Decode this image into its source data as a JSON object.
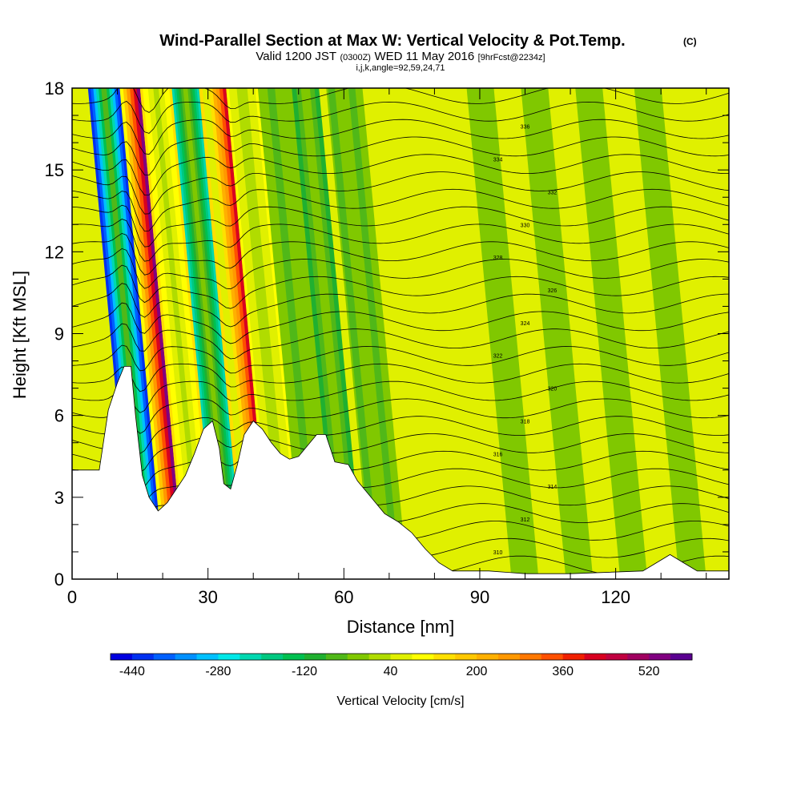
{
  "chart_data": {
    "type": "heatmap",
    "title": "Wind-Parallel Section at Max W: Vertical Velocity & Pot.Temp.",
    "title_mark": "(C)",
    "subtitle_parts": [
      "Valid 1200 JST",
      "(0300Z)",
      "WED 11 May 2016",
      "[9hrFcst@2234z]"
    ],
    "subtitle2": "i,j,k,angle=92,59,24,71",
    "xlabel": "Distance [nm]",
    "ylabel": "Height [Kft MSL]",
    "xlim": [
      0,
      145
    ],
    "ylim": [
      0,
      18
    ],
    "xticks": [
      0,
      30,
      60,
      90,
      120
    ],
    "yticks": [
      0,
      3,
      6,
      9,
      12,
      15,
      18
    ],
    "colorbar": {
      "title": "Vertical Velocity [cm/s]",
      "min": -480,
      "step": 40,
      "labels": [
        -440,
        -280,
        -120,
        40,
        200,
        360,
        520
      ],
      "colors": [
        "#0000e0",
        "#0030f0",
        "#0060ff",
        "#0090ff",
        "#00c0ff",
        "#00e8e8",
        "#00d8b0",
        "#00c880",
        "#00c050",
        "#20b030",
        "#50b818",
        "#80c800",
        "#b0dc00",
        "#e0f000",
        "#ffff00",
        "#ffe000",
        "#ffc800",
        "#ffb000",
        "#ff9800",
        "#ff7800",
        "#ff5000",
        "#f02000",
        "#d80020",
        "#c00040",
        "#a00060",
        "#800080",
        "#5a0090"
      ]
    },
    "background_band": "#e0f000",
    "updrafts": [
      {
        "x": 16,
        "peak": 520
      },
      {
        "x": 35,
        "peak": 400
      },
      {
        "x": 24,
        "peak": 120
      },
      {
        "x": 43,
        "peak": 80
      }
    ],
    "downdrafts": [
      {
        "x": 12.5,
        "peak": -440
      },
      {
        "x": 30.5,
        "peak": -240
      },
      {
        "x": 57,
        "peak": -120
      },
      {
        "x": 65,
        "peak": -80
      }
    ],
    "terrain": [
      [
        0,
        4.0
      ],
      [
        6,
        4.0
      ],
      [
        8,
        6.2
      ],
      [
        10,
        7.2
      ],
      [
        11.5,
        7.8
      ],
      [
        13,
        7.8
      ],
      [
        14,
        6.0
      ],
      [
        15.5,
        3.8
      ],
      [
        17,
        3.0
      ],
      [
        19,
        2.5
      ],
      [
        21,
        2.8
      ],
      [
        23,
        3.3
      ],
      [
        25,
        3.8
      ],
      [
        27,
        4.6
      ],
      [
        29,
        5.5
      ],
      [
        31,
        5.8
      ],
      [
        32.5,
        4.8
      ],
      [
        33.5,
        3.5
      ],
      [
        35,
        3.3
      ],
      [
        36.5,
        4.2
      ],
      [
        38,
        5.3
      ],
      [
        40,
        5.8
      ],
      [
        42,
        5.5
      ],
      [
        44,
        5.0
      ],
      [
        46,
        4.6
      ],
      [
        48,
        4.4
      ],
      [
        50,
        4.5
      ],
      [
        52,
        4.9
      ],
      [
        54,
        5.3
      ],
      [
        56,
        5.3
      ],
      [
        58,
        4.3
      ],
      [
        61,
        4.2
      ],
      [
        63,
        3.6
      ],
      [
        66,
        3.0
      ],
      [
        69,
        2.4
      ],
      [
        72,
        2.1
      ],
      [
        75,
        1.7
      ],
      [
        78,
        1.1
      ],
      [
        81,
        0.6
      ],
      [
        84,
        0.3
      ],
      [
        88,
        0.3
      ],
      [
        92,
        0.3
      ],
      [
        100,
        0.2
      ],
      [
        110,
        0.2
      ],
      [
        126,
        0.3
      ],
      [
        129,
        0.6
      ],
      [
        132,
        0.9
      ],
      [
        135,
        0.6
      ],
      [
        138,
        0.3
      ],
      [
        145,
        0.3
      ]
    ],
    "contours_theta": {
      "count": 28,
      "label_values": [
        "310",
        "312",
        "314",
        "316",
        "318",
        "320",
        "322",
        "324",
        "326",
        "328",
        "330",
        "332",
        "334",
        "336"
      ]
    }
  }
}
